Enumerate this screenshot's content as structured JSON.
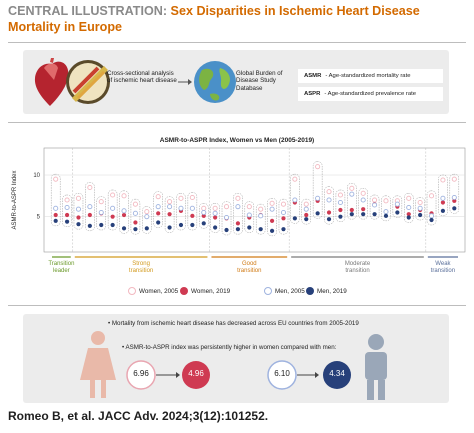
{
  "header": {
    "lead": "CENTRAL ILLUSTRATION:",
    "title": "Sex Disparities in Ischemic Heart Disease Mortality in Europe"
  },
  "top_panel": {
    "analysis_text": "Cross-sectional analysis of ischemic heart disease",
    "source_text": "Global Burden of Disease Study Database",
    "legend": [
      {
        "abbr": "ASMR",
        "text": "- Age-standardized mortality rate"
      },
      {
        "abbr": "ASPR",
        "text": "- Age-standardized prevalence rate"
      }
    ]
  },
  "chart_data": {
    "type": "scatter",
    "title": "ASMR-to-ASPR Index, Women vs Men (2005-2019)",
    "ylabel": "ASMR-to-ASPR Index",
    "yticks": [
      5,
      10
    ],
    "ylim": [
      1,
      13
    ],
    "groups": [
      {
        "label": "Transition leader",
        "color": "#6b9a2a"
      },
      {
        "label": "Strong transition",
        "color": "#d29a1e"
      },
      {
        "label": "Good transition",
        "color": "#d07a14"
      },
      {
        "label": "Moderate transition",
        "color": "#7a7a7a"
      },
      {
        "label": "Weak transition",
        "color": "#5a6f9a"
      }
    ],
    "series": [
      {
        "name": "Women, 2005",
        "values": [
          9.5,
          7.0,
          7.2,
          8.5,
          6.8,
          7.6,
          7.5,
          6.5,
          5.6,
          7.4,
          6.8,
          7.2,
          7.3,
          6.0,
          6.0,
          6.2,
          7.2,
          6.2,
          5.9,
          6.6,
          6.5,
          9.5,
          6.5,
          11.0,
          8.0,
          7.6,
          8.4,
          7.8,
          7.0,
          6.9,
          6.9,
          7.2,
          6.7,
          7.5,
          9.4,
          9.5
        ]
      },
      {
        "name": "Women, 2019",
        "values": [
          5.2,
          5.2,
          4.9,
          5.2,
          5.4,
          5.0,
          5.2,
          4.3,
          5.0,
          5.4,
          5.3,
          5.7,
          5.1,
          5.1,
          4.9,
          4.8,
          4.2,
          4.9,
          5.2,
          4.5,
          4.8,
          6.7,
          5.2,
          6.9,
          5.5,
          5.8,
          5.8,
          5.9,
          6.5,
          5.6,
          6.2,
          5.3,
          5.8,
          5.4,
          6.7,
          6.9
        ]
      },
      {
        "name": "Men, 2005",
        "values": [
          6.0,
          6.1,
          5.9,
          6.2,
          5.5,
          6.0,
          5.7,
          5.4,
          5.0,
          6.2,
          6.2,
          6.0,
          6.0,
          5.5,
          5.4,
          4.9,
          6.2,
          5.2,
          5.1,
          5.9,
          5.5,
          7.0,
          5.9,
          7.2,
          7.0,
          6.7,
          7.7,
          7.0,
          6.4,
          5.6,
          6.5,
          6.1,
          6.0,
          5.1,
          7.2,
          7.3
        ]
      },
      {
        "name": "Men, 2019",
        "values": [
          4.5,
          4.4,
          4.1,
          3.9,
          4.0,
          4.0,
          3.6,
          3.5,
          3.6,
          4.3,
          3.7,
          4.0,
          4.0,
          4.2,
          3.7,
          3.4,
          3.5,
          3.7,
          3.5,
          3.3,
          3.5,
          4.8,
          4.7,
          5.4,
          4.7,
          5.0,
          5.3,
          5.3,
          5.3,
          5.1,
          5.5,
          4.9,
          5.2,
          4.6,
          5.7,
          6.0
        ]
      }
    ],
    "group_sizes": [
      2,
      12,
      7,
      12,
      3
    ],
    "legend": [
      {
        "name": "Women, 2005",
        "color": "#f2b8c0",
        "filled": false
      },
      {
        "name": "Women, 2019",
        "color": "#cf3a52",
        "filled": true
      },
      {
        "name": "Men, 2005",
        "color": "#9fb3df",
        "filled": false
      },
      {
        "name": "Men, 2019",
        "color": "#27407a",
        "filled": true
      }
    ]
  },
  "bottom_panel": {
    "line1": "Mortality from ischemic heart disease has decreased across EU countries from 2005-2019",
    "line2": "ASMR-to-ASPR index was persistently higher in women compared with men:",
    "women_2005": "6.96",
    "women_2019": "4.96",
    "men_2005": "6.10",
    "men_2019": "4.34"
  },
  "citation": "Romeo B, et al. JACC Adv. 2024;3(12):101252."
}
